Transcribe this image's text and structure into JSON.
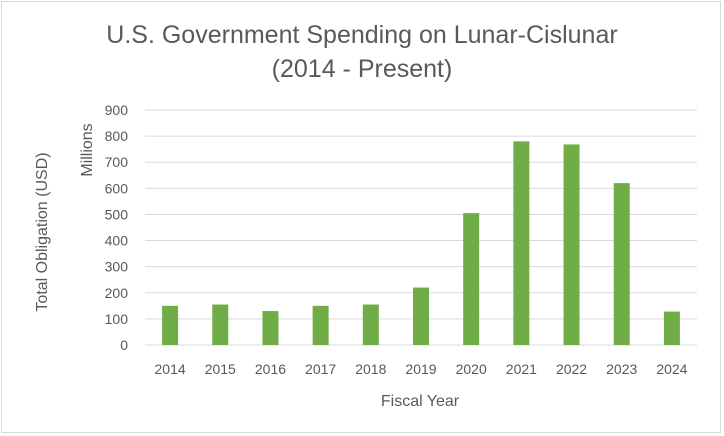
{
  "chart_data": {
    "type": "bar",
    "title": "U.S. Government Spending on Lunar-Cislunar",
    "subtitle": "(2014 - Present)",
    "xlabel": "Fiscal Year",
    "ylabel": "Total Obligation (USD)",
    "yunits_label": "Millions",
    "ylim": [
      0,
      900
    ],
    "yticks": [
      0,
      100,
      200,
      300,
      400,
      500,
      600,
      700,
      800,
      900
    ],
    "grid": true,
    "legend": "none",
    "categories": [
      "2014",
      "2015",
      "2016",
      "2017",
      "2018",
      "2019",
      "2020",
      "2021",
      "2022",
      "2023",
      "2024"
    ],
    "values": [
      150,
      155,
      130,
      150,
      155,
      220,
      505,
      780,
      768,
      620,
      128
    ],
    "bar_color": "#70ad47"
  }
}
